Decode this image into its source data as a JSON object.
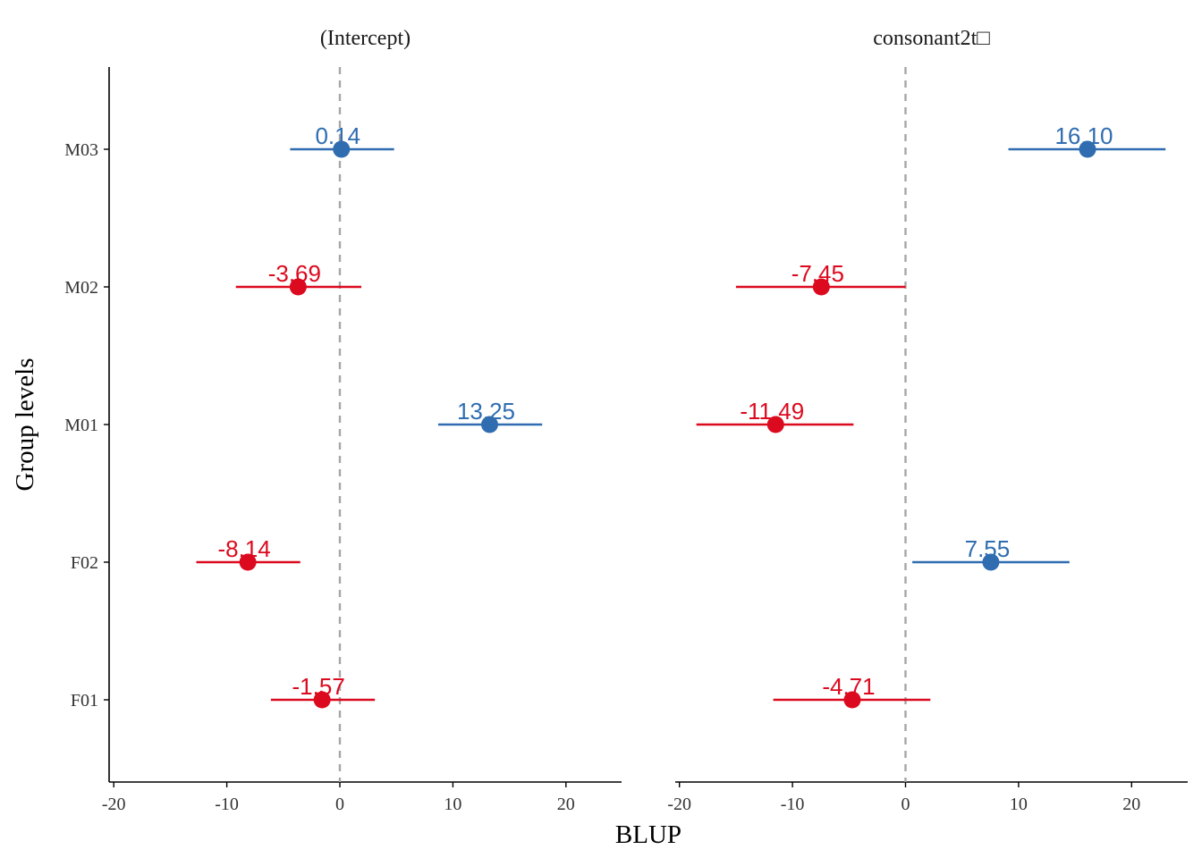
{
  "chart_data": {
    "type": "scatter",
    "subtype": "forest-plot-with-intervals",
    "xlabel": "BLUP",
    "ylabel": "Group levels",
    "categories": [
      "F01",
      "F02",
      "M01",
      "M02",
      "M03"
    ],
    "xlim": [
      -20.5,
      25
    ],
    "xticks": [
      -20,
      -10,
      0,
      10,
      20
    ],
    "xtick_labels": [
      "-20",
      "-10",
      "0",
      "10",
      "20"
    ],
    "reference_line": 0,
    "grid": false,
    "legend": "none",
    "colors": {
      "positive": "#2f6db0",
      "negative": "#dc0a1e",
      "reference": "#a6a6a6",
      "axis": "#000000"
    },
    "panels": [
      {
        "title": "(Intercept)",
        "points": [
          {
            "group": "F01",
            "value": -1.57,
            "lower": -6.1,
            "upper": 3.1,
            "label": "-1.57"
          },
          {
            "group": "F02",
            "value": -8.14,
            "lower": -12.7,
            "upper": -3.5,
            "label": "-8.14"
          },
          {
            "group": "M01",
            "value": 13.25,
            "lower": 8.7,
            "upper": 17.9,
            "label": "13.25"
          },
          {
            "group": "M02",
            "value": -3.69,
            "lower": -9.2,
            "upper": 1.9,
            "label": "-3.69"
          },
          {
            "group": "M03",
            "value": 0.14,
            "lower": -4.4,
            "upper": 4.8,
            "label": "0.14"
          }
        ]
      },
      {
        "title": "consonant2t□",
        "points": [
          {
            "group": "F01",
            "value": -4.71,
            "lower": -11.7,
            "upper": 2.2,
            "label": "-4.71"
          },
          {
            "group": "F02",
            "value": 7.55,
            "lower": 0.6,
            "upper": 14.5,
            "label": "7.55"
          },
          {
            "group": "M01",
            "value": -11.49,
            "lower": -18.5,
            "upper": -4.6,
            "label": "-11.49"
          },
          {
            "group": "M02",
            "value": -7.45,
            "lower": -15.0,
            "upper": 0.0,
            "label": "-7.45"
          },
          {
            "group": "M03",
            "value": 16.1,
            "lower": 9.1,
            "upper": 23.0,
            "label": "16.10"
          }
        ]
      }
    ]
  }
}
